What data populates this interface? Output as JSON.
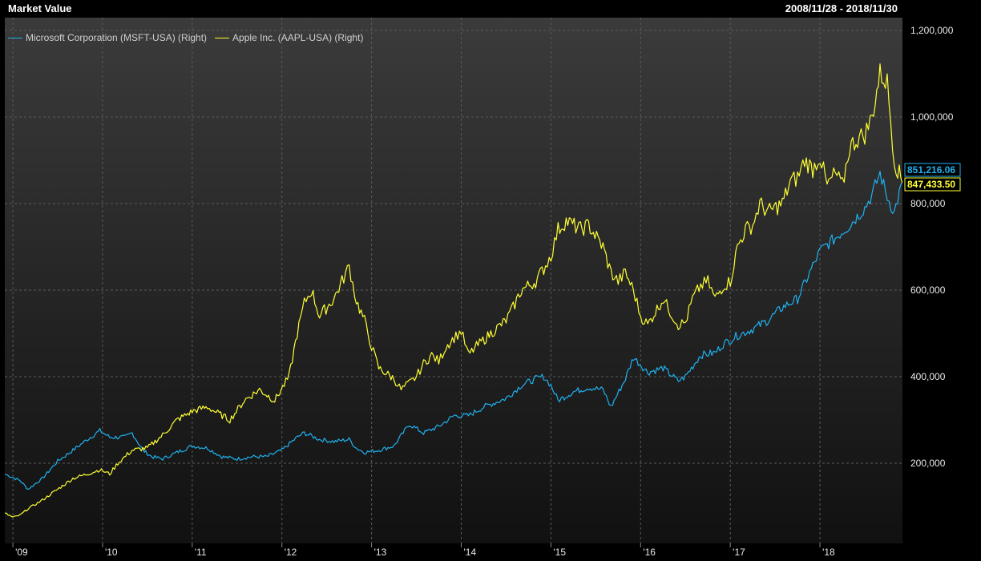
{
  "header": {
    "title": "Market Value",
    "date_range": "2008/11/28 - 2018/11/30"
  },
  "colors": {
    "msft": "#1fb2f0",
    "aapl": "#ffff33",
    "background": "#1c1c1c",
    "grid": "#5a5a5a"
  },
  "chart_data": {
    "type": "line",
    "title": "Market Value",
    "xlabel": "",
    "ylabel": "",
    "x_ticks": [
      "'09",
      "'10",
      "'11",
      "'12",
      "'13",
      "'14",
      "'15",
      "'16",
      "'17",
      "'18"
    ],
    "y_ticks": [
      "200,000",
      "400,000",
      "600,000",
      "800,000",
      "1,000,000",
      "1,200,000"
    ],
    "ylim": [
      0,
      1200000
    ],
    "xlim": [
      2008.91,
      2018.92
    ],
    "grid": true,
    "legend_position": "top-left",
    "series": [
      {
        "name": "Microsoft Corporation (MSFT-USA) (Right)",
        "last_value_label": "851,216.06",
        "points": [
          [
            2008.91,
            175000
          ],
          [
            2009.08,
            160000
          ],
          [
            2009.17,
            140000
          ],
          [
            2009.33,
            165000
          ],
          [
            2009.5,
            205000
          ],
          [
            2009.67,
            230000
          ],
          [
            2009.83,
            255000
          ],
          [
            2009.97,
            275000
          ],
          [
            2010.08,
            260000
          ],
          [
            2010.25,
            260000
          ],
          [
            2010.33,
            270000
          ],
          [
            2010.45,
            230000
          ],
          [
            2010.55,
            215000
          ],
          [
            2010.67,
            210000
          ],
          [
            2010.83,
            225000
          ],
          [
            2011.0,
            240000
          ],
          [
            2011.17,
            235000
          ],
          [
            2011.33,
            215000
          ],
          [
            2011.5,
            210000
          ],
          [
            2011.67,
            215000
          ],
          [
            2011.83,
            215000
          ],
          [
            2012.0,
            230000
          ],
          [
            2012.17,
            260000
          ],
          [
            2012.25,
            270000
          ],
          [
            2012.42,
            255000
          ],
          [
            2012.58,
            250000
          ],
          [
            2012.75,
            255000
          ],
          [
            2012.83,
            235000
          ],
          [
            2012.92,
            225000
          ],
          [
            2013.08,
            230000
          ],
          [
            2013.25,
            240000
          ],
          [
            2013.42,
            290000
          ],
          [
            2013.58,
            270000
          ],
          [
            2013.75,
            285000
          ],
          [
            2013.92,
            310000
          ],
          [
            2014.08,
            310000
          ],
          [
            2014.25,
            330000
          ],
          [
            2014.5,
            350000
          ],
          [
            2014.67,
            380000
          ],
          [
            2014.83,
            395000
          ],
          [
            2014.92,
            400000
          ],
          [
            2015.0,
            380000
          ],
          [
            2015.08,
            345000
          ],
          [
            2015.25,
            365000
          ],
          [
            2015.42,
            375000
          ],
          [
            2015.58,
            370000
          ],
          [
            2015.67,
            330000
          ],
          [
            2015.83,
            395000
          ],
          [
            2015.92,
            445000
          ],
          [
            2016.08,
            410000
          ],
          [
            2016.25,
            420000
          ],
          [
            2016.42,
            390000
          ],
          [
            2016.5,
            400000
          ],
          [
            2016.67,
            450000
          ],
          [
            2016.83,
            455000
          ],
          [
            2016.92,
            475000
          ],
          [
            2017.08,
            495000
          ],
          [
            2017.25,
            510000
          ],
          [
            2017.42,
            530000
          ],
          [
            2017.58,
            560000
          ],
          [
            2017.75,
            580000
          ],
          [
            2017.92,
            655000
          ],
          [
            2018.0,
            690000
          ],
          [
            2018.08,
            705000
          ],
          [
            2018.17,
            720000
          ],
          [
            2018.33,
            750000
          ],
          [
            2018.5,
            790000
          ],
          [
            2018.58,
            820000
          ],
          [
            2018.67,
            870000
          ],
          [
            2018.75,
            815000
          ],
          [
            2018.83,
            780000
          ],
          [
            2018.92,
            851216
          ]
        ]
      },
      {
        "name": "Apple Inc. (AAPL-USA) (Right)",
        "last_value_label": "847,433.50",
        "points": [
          [
            2008.91,
            85000
          ],
          [
            2009.0,
            75000
          ],
          [
            2009.08,
            80000
          ],
          [
            2009.17,
            95000
          ],
          [
            2009.33,
            115000
          ],
          [
            2009.5,
            140000
          ],
          [
            2009.67,
            165000
          ],
          [
            2009.83,
            175000
          ],
          [
            2009.97,
            185000
          ],
          [
            2010.08,
            175000
          ],
          [
            2010.17,
            200000
          ],
          [
            2010.33,
            230000
          ],
          [
            2010.5,
            235000
          ],
          [
            2010.67,
            265000
          ],
          [
            2010.83,
            300000
          ],
          [
            2011.0,
            320000
          ],
          [
            2011.17,
            330000
          ],
          [
            2011.25,
            320000
          ],
          [
            2011.42,
            300000
          ],
          [
            2011.58,
            345000
          ],
          [
            2011.75,
            370000
          ],
          [
            2011.92,
            345000
          ],
          [
            2012.08,
            400000
          ],
          [
            2012.17,
            500000
          ],
          [
            2012.25,
            570000
          ],
          [
            2012.33,
            600000
          ],
          [
            2012.42,
            540000
          ],
          [
            2012.58,
            580000
          ],
          [
            2012.67,
            620000
          ],
          [
            2012.75,
            655000
          ],
          [
            2012.83,
            575000
          ],
          [
            2012.92,
            530000
          ],
          [
            2013.0,
            470000
          ],
          [
            2013.08,
            420000
          ],
          [
            2013.25,
            395000
          ],
          [
            2013.33,
            370000
          ],
          [
            2013.42,
            385000
          ],
          [
            2013.5,
            400000
          ],
          [
            2013.58,
            430000
          ],
          [
            2013.67,
            450000
          ],
          [
            2013.75,
            435000
          ],
          [
            2013.83,
            470000
          ],
          [
            2013.92,
            490000
          ],
          [
            2014.0,
            505000
          ],
          [
            2014.08,
            450000
          ],
          [
            2014.17,
            470000
          ],
          [
            2014.33,
            500000
          ],
          [
            2014.5,
            530000
          ],
          [
            2014.58,
            560000
          ],
          [
            2014.67,
            600000
          ],
          [
            2014.83,
            620000
          ],
          [
            2014.92,
            650000
          ],
          [
            2015.0,
            680000
          ],
          [
            2015.08,
            740000
          ],
          [
            2015.17,
            760000
          ],
          [
            2015.33,
            740000
          ],
          [
            2015.42,
            750000
          ],
          [
            2015.58,
            700000
          ],
          [
            2015.67,
            640000
          ],
          [
            2015.75,
            620000
          ],
          [
            2015.83,
            640000
          ],
          [
            2015.92,
            600000
          ],
          [
            2016.0,
            540000
          ],
          [
            2016.08,
            520000
          ],
          [
            2016.25,
            580000
          ],
          [
            2016.33,
            550000
          ],
          [
            2016.42,
            520000
          ],
          [
            2016.5,
            525000
          ],
          [
            2016.58,
            580000
          ],
          [
            2016.67,
            610000
          ],
          [
            2016.75,
            620000
          ],
          [
            2016.83,
            580000
          ],
          [
            2016.92,
            610000
          ],
          [
            2017.0,
            620000
          ],
          [
            2017.08,
            700000
          ],
          [
            2017.17,
            740000
          ],
          [
            2017.25,
            750000
          ],
          [
            2017.33,
            800000
          ],
          [
            2017.42,
            780000
          ],
          [
            2017.58,
            800000
          ],
          [
            2017.67,
            850000
          ],
          [
            2017.75,
            860000
          ],
          [
            2017.83,
            900000
          ],
          [
            2017.92,
            880000
          ],
          [
            2018.0,
            910000
          ],
          [
            2018.08,
            840000
          ],
          [
            2018.17,
            870000
          ],
          [
            2018.25,
            840000
          ],
          [
            2018.33,
            930000
          ],
          [
            2018.42,
            950000
          ],
          [
            2018.5,
            960000
          ],
          [
            2018.58,
            1000000
          ],
          [
            2018.67,
            1100000
          ],
          [
            2018.75,
            1080000
          ],
          [
            2018.83,
            900000
          ],
          [
            2018.92,
            847433
          ]
        ]
      }
    ]
  }
}
